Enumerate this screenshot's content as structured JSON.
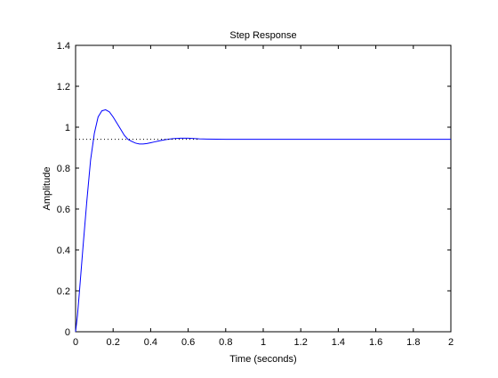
{
  "chart_data": {
    "type": "line",
    "title": "Step Response",
    "xlabel": "Time (seconds)",
    "ylabel": "Amplitude",
    "xlim": [
      0,
      2
    ],
    "ylim": [
      0,
      1.4
    ],
    "x_ticks": [
      "0",
      "0.2",
      "0.4",
      "0.6",
      "0.8",
      "1",
      "1.2",
      "1.4",
      "1.6",
      "1.8",
      "2"
    ],
    "y_ticks": [
      "0",
      "0.2",
      "0.4",
      "0.6",
      "0.8",
      "1",
      "1.2",
      "1.4"
    ],
    "grid": false,
    "series": [
      {
        "style": "solid",
        "color": "#0000ff",
        "x": [
          0,
          0.01,
          0.02,
          0.04,
          0.06,
          0.08,
          0.1,
          0.12,
          0.14,
          0.16,
          0.18,
          0.2,
          0.22,
          0.24,
          0.26,
          0.28,
          0.3,
          0.32,
          0.34,
          0.36,
          0.38,
          0.4,
          0.42,
          0.44,
          0.46,
          0.48,
          0.5,
          0.52,
          0.54,
          0.56,
          0.58,
          0.6,
          0.62,
          0.64,
          0.66,
          0.7,
          0.8,
          1.0,
          1.2,
          1.4,
          1.6,
          1.8,
          2.0
        ],
        "y": [
          0,
          0.08,
          0.19,
          0.42,
          0.64,
          0.84,
          0.97,
          1.05,
          1.08,
          1.085,
          1.075,
          1.05,
          1.02,
          0.99,
          0.96,
          0.94,
          0.93,
          0.922,
          0.918,
          0.918,
          0.92,
          0.924,
          0.928,
          0.932,
          0.936,
          0.939,
          0.942,
          0.944,
          0.945,
          0.946,
          0.946,
          0.946,
          0.945,
          0.944,
          0.943,
          0.942,
          0.941,
          0.941,
          0.941,
          0.941,
          0.941,
          0.941,
          0.941
        ]
      },
      {
        "style": "dotted",
        "color": "#000000",
        "x": [
          0,
          0.66
        ],
        "y": [
          0.941,
          0.941
        ]
      }
    ]
  }
}
